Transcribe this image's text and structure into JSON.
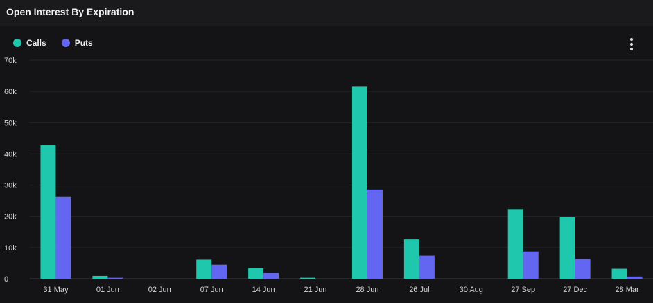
{
  "header": {
    "title": "Open Interest By Expiration"
  },
  "menu": {
    "icon": "kebab-menu-icon"
  },
  "chart_data": {
    "type": "bar",
    "categories": [
      "31 May",
      "01 Jun",
      "02 Jun",
      "07 Jun",
      "14 Jun",
      "21 Jun",
      "28 Jun",
      "26 Jul",
      "30 Aug",
      "27 Sep",
      "27 Dec",
      "28 Mar"
    ],
    "series": [
      {
        "name": "Calls",
        "color": "#1fc7ac",
        "values": [
          42800,
          900,
          0,
          6100,
          3400,
          300,
          61500,
          12600,
          0,
          22300,
          19800,
          3200
        ]
      },
      {
        "name": "Puts",
        "color": "#6366f1",
        "values": [
          26200,
          300,
          0,
          4500,
          1900,
          0,
          28600,
          7400,
          0,
          8700,
          6300,
          700
        ]
      }
    ],
    "yticks": [
      "0",
      "10k",
      "20k",
      "30k",
      "40k",
      "50k",
      "60k",
      "70k"
    ],
    "ylim": [
      0,
      70000
    ],
    "grid": true,
    "legend": "top-left",
    "xlabel": "",
    "ylabel": ""
  }
}
